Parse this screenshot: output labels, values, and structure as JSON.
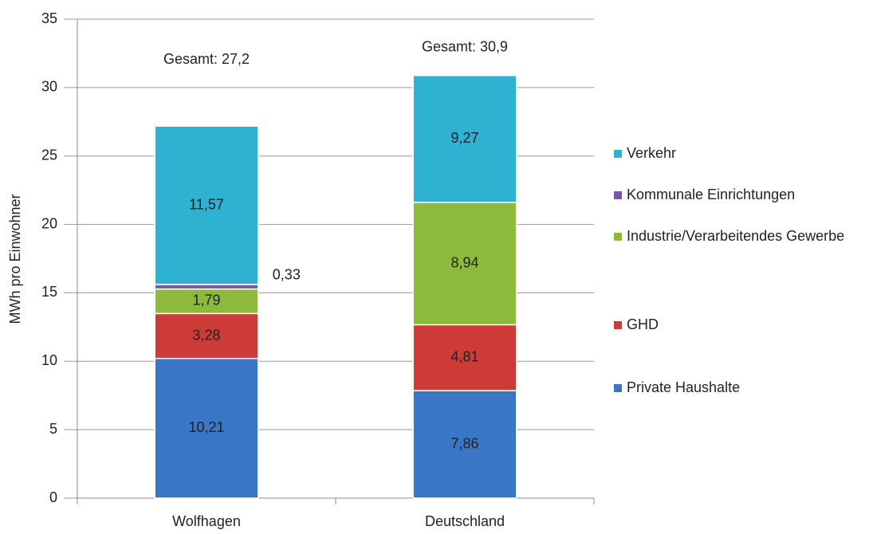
{
  "chart_data": {
    "type": "stacked_bar",
    "y_label": "MWh pro Einwohner",
    "categories": [
      "Wolfhagen",
      "Deutschland"
    ],
    "series": [
      {
        "name": "Private Haushalte",
        "color": "#3a76c6",
        "values": [
          10.21,
          7.86
        ],
        "value_labels": [
          "10,21",
          "7,86"
        ]
      },
      {
        "name": "GHD",
        "color": "#cc3b36",
        "values": [
          3.28,
          4.81
        ],
        "value_labels": [
          "3,28",
          "4,81"
        ]
      },
      {
        "name": "Industrie/Verarbeitendes Gewerbe",
        "color": "#8dba3c",
        "values": [
          1.79,
          8.94
        ],
        "value_labels": [
          "1,79",
          "8,94"
        ]
      },
      {
        "name": "Kommunale Einrichtungen",
        "color": "#7657a3",
        "values": [
          0.33,
          null
        ],
        "value_labels": [
          "0,33",
          null
        ]
      },
      {
        "name": "Verkehr",
        "color": "#2fb1d2",
        "values": [
          11.57,
          9.27
        ],
        "value_labels": [
          "11,57",
          "9,27"
        ]
      }
    ],
    "total_labels": [
      "Gesamt: 27,2",
      "Gesamt: 30,9"
    ],
    "ylim": [
      0,
      35
    ],
    "yticks": [
      0,
      5,
      10,
      15,
      20,
      25,
      30,
      35
    ],
    "grid": true,
    "legend": "right"
  }
}
